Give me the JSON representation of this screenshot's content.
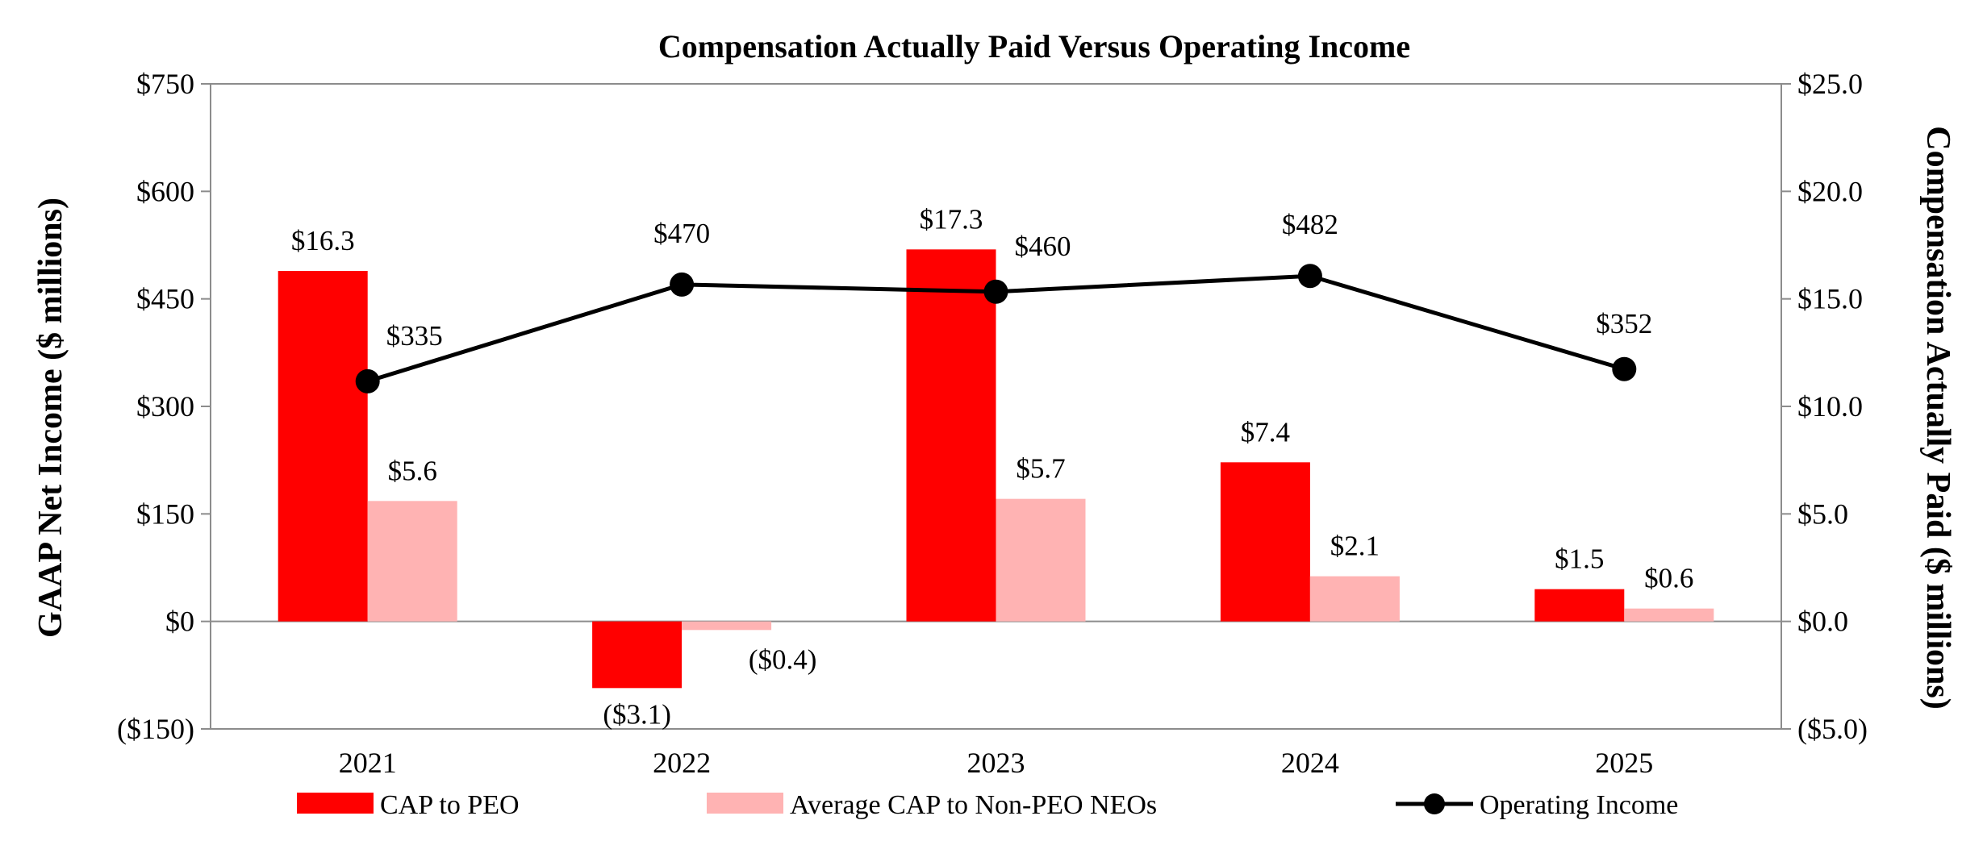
{
  "chart_data": {
    "type": "bar-line",
    "title": "Compensation Actually Paid Versus Operating Income",
    "categories": [
      "2021",
      "2022",
      "2023",
      "2024",
      "2025"
    ],
    "left_axis": {
      "label": "GAAP Net Income ($ millions)",
      "range": [
        -150,
        750
      ],
      "ticks": [
        -150,
        0,
        150,
        300,
        450,
        600,
        750
      ],
      "tick_labels": [
        "($150)",
        "$0",
        "$150",
        "$300",
        "$450",
        "$600",
        "$750"
      ]
    },
    "right_axis": {
      "label": "Compensation Actually Paid ($ millions)",
      "range": [
        -5,
        25
      ],
      "ticks": [
        -5,
        0,
        5,
        10,
        15,
        20,
        25
      ],
      "tick_labels": [
        "($5.0)",
        "$0.0",
        "$5.0",
        "$10.0",
        "$15.0",
        "$20.0",
        "$25.0"
      ]
    },
    "series": [
      {
        "name": "CAP to PEO",
        "type": "bar",
        "axis": "right",
        "color": "#ff0000",
        "values": [
          16.3,
          -3.1,
          17.3,
          7.4,
          1.5
        ],
        "labels": [
          "$16.3",
          "($3.1)",
          "$17.3",
          "$7.4",
          "$1.5"
        ]
      },
      {
        "name": "Average CAP to Non-PEO NEOs",
        "type": "bar",
        "axis": "right",
        "color": "#ffb3b3",
        "values": [
          5.6,
          -0.4,
          5.7,
          2.1,
          0.6
        ],
        "labels": [
          "$5.6",
          "($0.4)",
          "$5.7",
          "$2.1",
          "$0.6"
        ]
      },
      {
        "name": "Operating Income",
        "type": "line",
        "axis": "left",
        "color": "#000000",
        "values": [
          335,
          470,
          460,
          482,
          352
        ],
        "labels": [
          "$335",
          "$470",
          "$460",
          "$482",
          "$352"
        ]
      }
    ],
    "legend_position": "bottom"
  }
}
